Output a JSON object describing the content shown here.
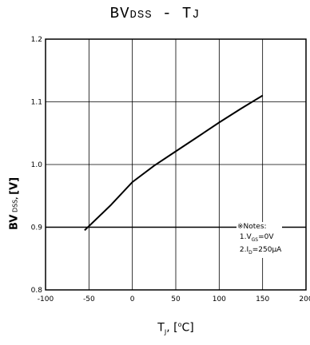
{
  "title": "BVDSS - TJ",
  "notes": {
    "heading": "※Notes:",
    "line1": "1.VGS=0V",
    "line2": "2.ID=250µA"
  },
  "chart_data": {
    "type": "line",
    "title": "BVDSS - TJ",
    "xlabel": "TJ, [°C]",
    "ylabel": "BV DSS, [V]",
    "xlim": [
      -100,
      200
    ],
    "ylim": [
      0.8,
      1.2
    ],
    "xticks": [
      -100,
      -50,
      0,
      50,
      100,
      150,
      200
    ],
    "yticks": [
      0.8,
      0.9,
      1.0,
      1.1,
      1.2
    ],
    "xtick_labels": [
      "-100",
      "-50",
      "0",
      "50",
      "100",
      "150",
      "200"
    ],
    "ytick_labels": [
      "0.8",
      "0.9",
      "1.0",
      "1.1",
      "1.2"
    ],
    "grid": true,
    "series": [
      {
        "x": [
          -55,
          -25,
          0,
          25,
          50,
          75,
          100,
          125,
          150
        ],
        "y": [
          0.895,
          0.935,
          0.972,
          0.998,
          1.021,
          1.044,
          1.067,
          1.089,
          1.11
        ]
      }
    ]
  }
}
